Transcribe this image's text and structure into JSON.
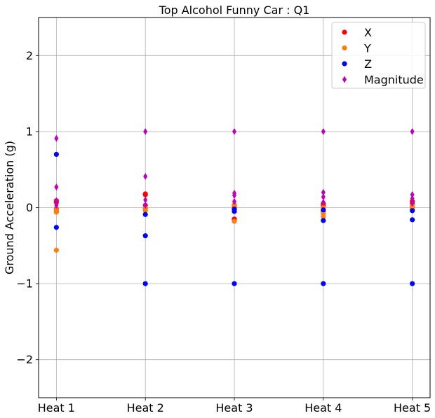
{
  "chart_data": {
    "type": "scatter",
    "title": "Top Alcohol Funny Car : Q1",
    "xlabel": "",
    "ylabel": "Ground Acceleration (g)",
    "categories": [
      "Heat 1",
      "Heat 2",
      "Heat 3",
      "Heat 4",
      "Heat 5"
    ],
    "ylim": [
      -2.5,
      2.5
    ],
    "yticks": [
      -2,
      -1,
      0,
      1,
      2
    ],
    "ytick_labels": [
      "−2",
      "−1",
      "0",
      "1",
      "2"
    ],
    "grid": true,
    "legend_position": "top-right",
    "series": [
      {
        "name": "X",
        "color": "#ff0000",
        "marker": "circle",
        "points": [
          [
            0,
            0.09
          ],
          [
            0,
            0.07
          ],
          [
            0,
            -0.02
          ],
          [
            0,
            -0.05
          ],
          [
            1,
            0.18
          ],
          [
            1,
            0.17
          ],
          [
            1,
            0.03
          ],
          [
            1,
            -0.01
          ],
          [
            2,
            -0.15
          ],
          [
            2,
            -0.16
          ],
          [
            2,
            0.02
          ],
          [
            3,
            0.05
          ],
          [
            3,
            0.02
          ],
          [
            3,
            -0.05
          ],
          [
            4,
            0.08
          ],
          [
            4,
            0.05
          ],
          [
            4,
            0.02
          ]
        ]
      },
      {
        "name": "Y",
        "color": "#ff7f0e",
        "marker": "circle",
        "points": [
          [
            0,
            -0.56
          ],
          [
            0,
            -0.03
          ],
          [
            0,
            -0.06
          ],
          [
            1,
            -0.04
          ],
          [
            1,
            0.0
          ],
          [
            1,
            -0.02
          ],
          [
            2,
            -0.18
          ],
          [
            2,
            0.04
          ],
          [
            2,
            0.0
          ],
          [
            3,
            -0.12
          ],
          [
            3,
            -0.08
          ],
          [
            3,
            0.0
          ],
          [
            4,
            0.0
          ],
          [
            4,
            0.03
          ],
          [
            4,
            -0.02
          ]
        ]
      },
      {
        "name": "Z",
        "color": "#0000ff",
        "marker": "circle",
        "points": [
          [
            0,
            0.7
          ],
          [
            0,
            -0.26
          ],
          [
            1,
            -0.37
          ],
          [
            1,
            -0.09
          ],
          [
            1,
            -1.0
          ],
          [
            2,
            -1.0
          ],
          [
            2,
            -0.02
          ],
          [
            2,
            -0.05
          ],
          [
            3,
            -1.0
          ],
          [
            3,
            -0.17
          ],
          [
            3,
            -0.03
          ],
          [
            4,
            -1.0
          ],
          [
            4,
            -0.16
          ],
          [
            4,
            -0.04
          ]
        ]
      },
      {
        "name": "Magnitude",
        "color": "#bf00bf",
        "marker": "thin_diamond",
        "points": [
          [
            0,
            0.91
          ],
          [
            0,
            0.27
          ],
          [
            0,
            0.09
          ],
          [
            0,
            0.03
          ],
          [
            1,
            1.0
          ],
          [
            1,
            0.41
          ],
          [
            1,
            0.1
          ],
          [
            1,
            0.03
          ],
          [
            2,
            1.0
          ],
          [
            2,
            0.19
          ],
          [
            2,
            0.16
          ],
          [
            2,
            0.08
          ],
          [
            3,
            1.0
          ],
          [
            3,
            0.2
          ],
          [
            3,
            0.14
          ],
          [
            3,
            0.07
          ],
          [
            4,
            1.0
          ],
          [
            4,
            0.17
          ],
          [
            4,
            0.12
          ],
          [
            4,
            0.06
          ]
        ]
      }
    ]
  }
}
